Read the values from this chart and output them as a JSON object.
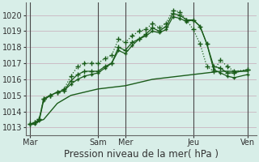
{
  "background_color": "#d8eee8",
  "grid_color": "#c8a8b8",
  "line_color": "#1a5c1a",
  "ylim": [
    1012.5,
    1020.8
  ],
  "yticks": [
    1013,
    1014,
    1015,
    1016,
    1017,
    1018,
    1019,
    1020
  ],
  "xlabel": "Pression niveau de la mer( hPa )",
  "xlabel_fontsize": 8.5,
  "tick_fontsize": 7,
  "day_labels": [
    "Mar",
    "Sam",
    "Mer",
    "Jeu",
    "Ven"
  ],
  "day_positions": [
    0,
    60,
    84,
    144,
    192
  ],
  "vline_positions": [
    0,
    60,
    84,
    144,
    192
  ],
  "xlim": [
    -4,
    200
  ],
  "series": [
    {
      "x": [
        0,
        4,
        8,
        12,
        18,
        24,
        30,
        36,
        42,
        48,
        54,
        60,
        66,
        72,
        78,
        84,
        90,
        96,
        102,
        108,
        114,
        120,
        126,
        132,
        138,
        144,
        150,
        156,
        162,
        168,
        174,
        180,
        192
      ],
      "y": [
        1013.2,
        1013.3,
        1013.5,
        1014.8,
        1015.0,
        1015.2,
        1015.4,
        1016.2,
        1016.8,
        1017.0,
        1017.0,
        1017.0,
        1017.3,
        1017.5,
        1018.5,
        1018.3,
        1018.7,
        1019.0,
        1019.1,
        1019.5,
        1019.2,
        1019.5,
        1020.3,
        1020.2,
        1019.7,
        1019.1,
        1018.2,
        1016.8,
        1016.5,
        1017.2,
        1016.8,
        1016.5,
        1016.6
      ],
      "marker": "+",
      "markersize": 4,
      "linewidth": 0.9,
      "linestyle": ":"
    },
    {
      "x": [
        0,
        4,
        8,
        12,
        18,
        24,
        30,
        36,
        42,
        48,
        54,
        60,
        66,
        72,
        78,
        84,
        90,
        96,
        102,
        108,
        114,
        120,
        126,
        132,
        138,
        144,
        150,
        156,
        162,
        168,
        174,
        180,
        192
      ],
      "y": [
        1013.2,
        1013.3,
        1013.5,
        1014.8,
        1015.0,
        1015.2,
        1015.3,
        1015.9,
        1016.3,
        1016.5,
        1016.5,
        1016.5,
        1016.8,
        1017.0,
        1018.0,
        1017.8,
        1018.3,
        1018.5,
        1018.8,
        1019.2,
        1019.0,
        1019.3,
        1020.1,
        1020.0,
        1019.7,
        1019.7,
        1019.3,
        1018.2,
        1016.8,
        1016.7,
        1016.4,
        1016.4,
        1016.6
      ],
      "marker": "+",
      "markersize": 4,
      "linewidth": 0.9,
      "linestyle": "-"
    },
    {
      "x": [
        0,
        4,
        8,
        12,
        18,
        24,
        30,
        36,
        42,
        48,
        54,
        60,
        66,
        72,
        78,
        84,
        90,
        96,
        102,
        108,
        114,
        120,
        126,
        132,
        138,
        144,
        150,
        156,
        162,
        168,
        174,
        180,
        192
      ],
      "y": [
        1013.2,
        1013.2,
        1013.4,
        1014.7,
        1015.0,
        1015.2,
        1015.3,
        1015.7,
        1016.0,
        1016.2,
        1016.3,
        1016.4,
        1016.7,
        1017.0,
        1017.8,
        1017.6,
        1018.1,
        1018.5,
        1018.7,
        1019.0,
        1018.9,
        1019.1,
        1019.9,
        1019.8,
        1019.6,
        1019.7,
        1019.3,
        1018.2,
        1016.6,
        1016.4,
        1016.2,
        1016.1,
        1016.3
      ],
      "marker": "+",
      "markersize": 3,
      "linewidth": 0.9,
      "linestyle": "-"
    },
    {
      "x": [
        0,
        12,
        24,
        36,
        48,
        60,
        72,
        84,
        96,
        108,
        120,
        132,
        144,
        156,
        168,
        180,
        192
      ],
      "y": [
        1013.2,
        1013.5,
        1014.5,
        1015.0,
        1015.2,
        1015.4,
        1015.5,
        1015.6,
        1015.8,
        1016.0,
        1016.1,
        1016.2,
        1016.3,
        1016.4,
        1016.5,
        1016.5,
        1016.5
      ],
      "marker": null,
      "markersize": 0,
      "linewidth": 1.0,
      "linestyle": "-"
    }
  ]
}
